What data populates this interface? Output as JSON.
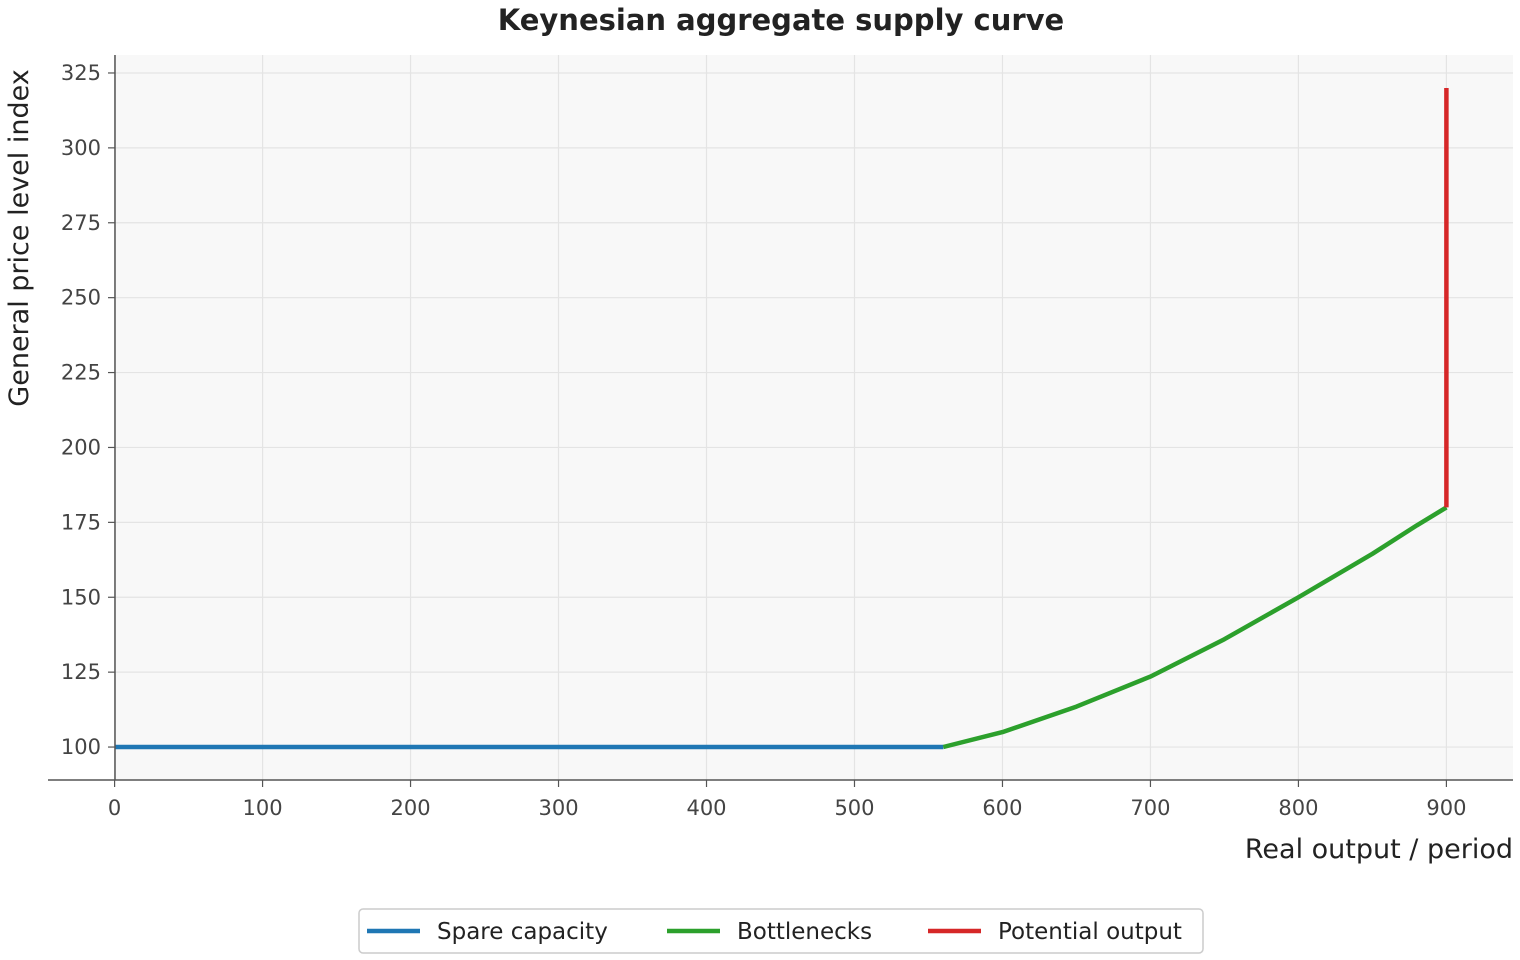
{
  "chart_data": {
    "type": "line",
    "title": "Keynesian aggregate supply curve",
    "xlabel": "Real output / period",
    "ylabel": "General price level index",
    "xlim": [
      -45,
      945
    ],
    "ylim": [
      89,
      331
    ],
    "xticks": [
      0,
      100,
      200,
      300,
      400,
      500,
      600,
      700,
      800,
      900
    ],
    "yticks": [
      100,
      125,
      150,
      175,
      200,
      225,
      250,
      275,
      300,
      325
    ],
    "grid": true,
    "legend_position": "bottom-center",
    "series": [
      {
        "name": "Spare capacity",
        "color": "#1f77b4",
        "x": [
          0,
          560
        ],
        "y": [
          100,
          100
        ]
      },
      {
        "name": "Bottlenecks",
        "color": "#2ca02c",
        "x": [
          560,
          600,
          650,
          700,
          750,
          800,
          850,
          880,
          900
        ],
        "y": [
          100,
          105,
          113.5,
          123.5,
          136,
          150,
          164.5,
          174,
          180
        ]
      },
      {
        "name": "Potential output",
        "color": "#d62728",
        "x": [
          900,
          900
        ],
        "y": [
          180,
          320
        ]
      }
    ]
  }
}
